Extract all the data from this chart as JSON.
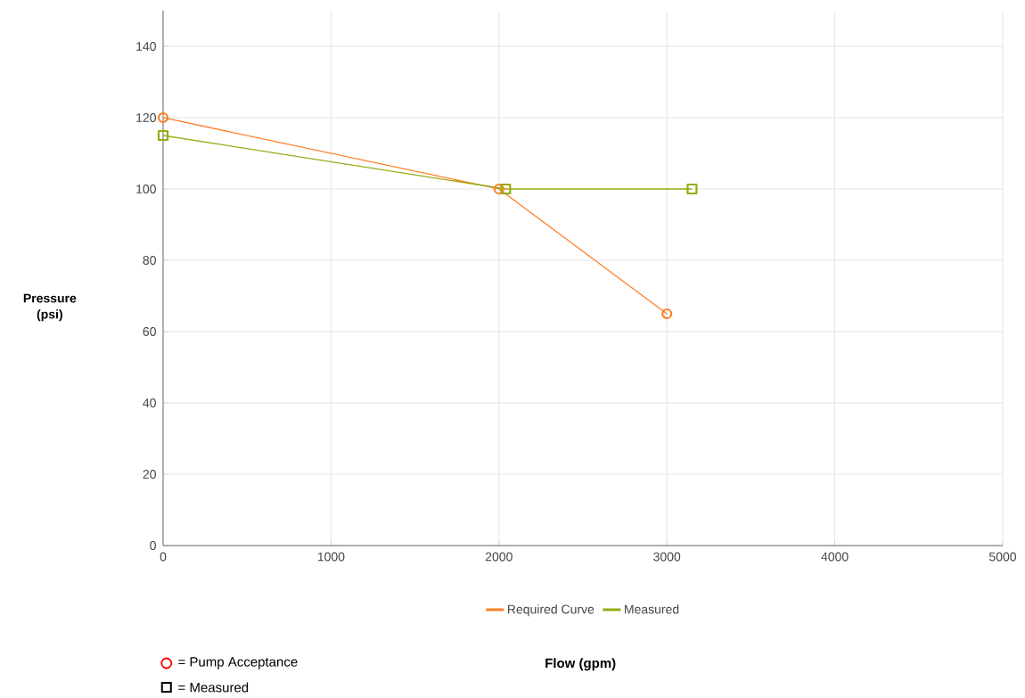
{
  "chart_data": {
    "type": "line",
    "ylabel": "Pressure (psi)",
    "series": [
      {
        "name": "Required Curve",
        "color": "#ff7f27",
        "marker": "circle",
        "x": [
          0,
          2000,
          3000
        ],
        "values": [
          120,
          100,
          65
        ]
      },
      {
        "name": "Measured",
        "color": "#9aaa14",
        "marker": "square",
        "x": [
          0,
          2040,
          3150
        ],
        "values": [
          115,
          100,
          100
        ]
      }
    ],
    "xlim": [
      0,
      5000
    ],
    "ylim": [
      0,
      150
    ],
    "xticks": [
      0,
      1000,
      2000,
      3000,
      4000,
      5000
    ],
    "yticks": [
      0,
      20,
      40,
      60,
      80,
      100,
      120,
      140
    ],
    "grid": true,
    "legend": "bottom",
    "line_style": "solid",
    "annotations": [
      "= Pump Acceptance",
      "= Measured",
      "Flow (gpm)"
    ]
  }
}
